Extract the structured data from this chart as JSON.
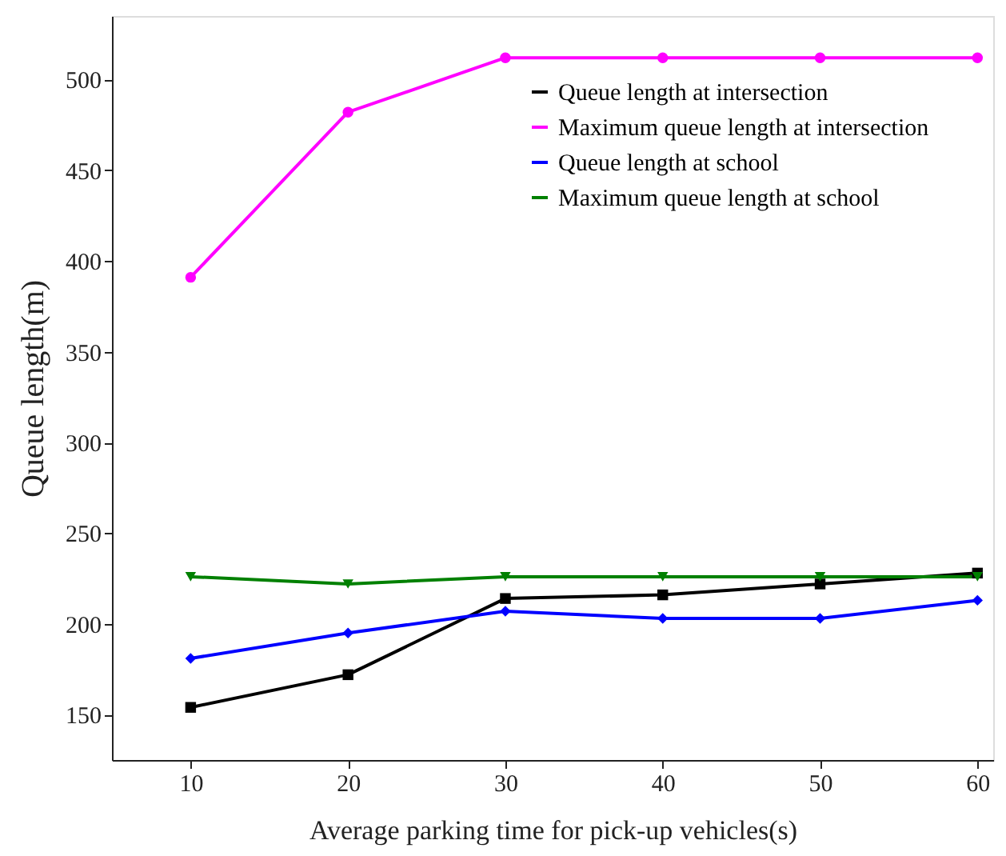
{
  "chart_data": {
    "type": "line",
    "xlabel": "Average parking time for pick-up vehicles(s)",
    "ylabel": "Queue length(m)",
    "x": [
      10,
      20,
      30,
      40,
      50,
      60
    ],
    "series": [
      {
        "name": "Queue length at intersection",
        "color": "#000000",
        "marker": "square",
        "values": [
          154,
          172,
          214,
          216,
          222,
          228
        ]
      },
      {
        "name": "Maximum queue length at intersection",
        "color": "#ff00ff",
        "marker": "circle",
        "values": [
          391,
          482,
          512,
          512,
          512,
          512
        ]
      },
      {
        "name": "Queue length at school",
        "color": "#0000ff",
        "marker": "diamond",
        "values": [
          181,
          195,
          207,
          203,
          203,
          213
        ]
      },
      {
        "name": "Maximum queue length at school",
        "color": "#008000",
        "marker": "triangle",
        "values": [
          226,
          222,
          226,
          226,
          226,
          226
        ]
      }
    ],
    "xlim": [
      5,
      61
    ],
    "xticks": [
      10,
      20,
      30,
      40,
      50,
      60
    ],
    "ylim": [
      125,
      535
    ],
    "yticks": [
      150,
      200,
      250,
      300,
      350,
      400,
      450,
      500
    ],
    "grid": false,
    "legend": "top right",
    "line_style": "solid"
  }
}
